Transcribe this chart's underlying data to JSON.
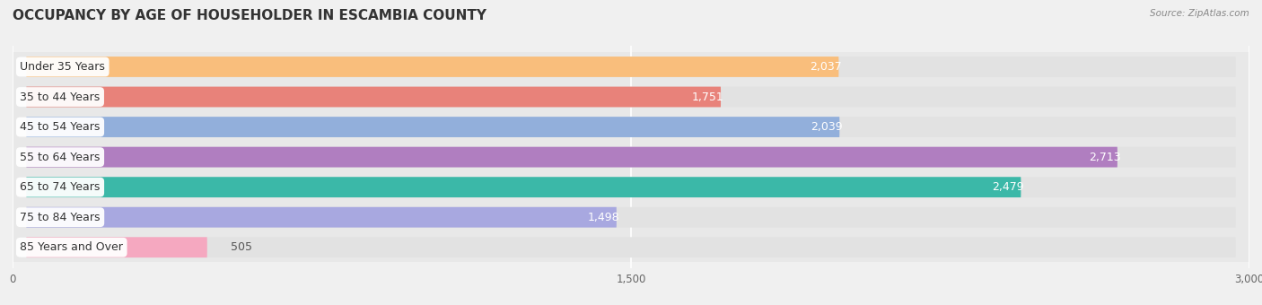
{
  "title": "OCCUPANCY BY AGE OF HOUSEHOLDER IN ESCAMBIA COUNTY",
  "source": "Source: ZipAtlas.com",
  "categories": [
    "Under 35 Years",
    "35 to 44 Years",
    "45 to 54 Years",
    "55 to 64 Years",
    "65 to 74 Years",
    "75 to 84 Years",
    "85 Years and Over"
  ],
  "values": [
    2037,
    1751,
    2039,
    2713,
    2479,
    1498,
    505
  ],
  "bar_colors": [
    "#F9BE7C",
    "#E8827A",
    "#92AFDB",
    "#B07EC0",
    "#3BB8A8",
    "#A8A8E0",
    "#F5A8C0"
  ],
  "xlim": [
    0,
    3000
  ],
  "xticks": [
    0,
    1500,
    3000
  ],
  "background_color": "#f0f0f0",
  "bar_bg_color": "#e2e2e2",
  "title_fontsize": 11,
  "label_fontsize": 9,
  "value_fontsize": 9,
  "bar_height": 0.68,
  "value_threshold": 800
}
